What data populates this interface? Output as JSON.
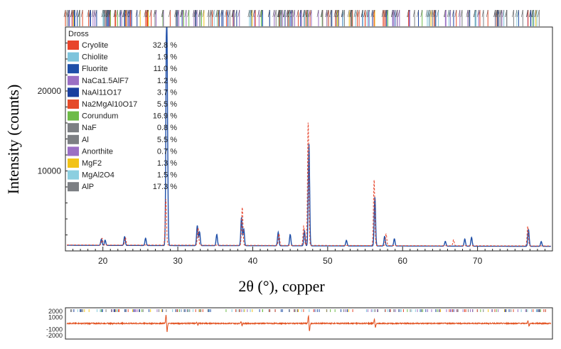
{
  "chart_data": {
    "type": "line",
    "title": "",
    "xlabel": "2θ (°), copper",
    "ylabel": "Intensity (counts)",
    "xlim": [
      15,
      80
    ],
    "ylim": [
      0,
      28000
    ],
    "x_ticks": [
      20,
      30,
      40,
      50,
      60,
      70
    ],
    "y_ticks": [
      10000,
      20000
    ],
    "x_tick_labels": [
      "20",
      "30",
      "40",
      "50",
      "60",
      "70"
    ],
    "y_tick_labels": [
      "10000",
      "20000"
    ],
    "grid": false,
    "legend": {
      "title": "Dross",
      "placement": "top-left",
      "entries": [
        {
          "name": "Cryolite",
          "value": "32.8 %",
          "color": "#e8452c"
        },
        {
          "name": "Chiolite",
          "value": "1.9 %",
          "color": "#7ec4dc"
        },
        {
          "name": "Fluorite",
          "value": "11.0 %",
          "color": "#1f4fa8"
        },
        {
          "name": "NaCa1.5AlF7",
          "value": "1.2 %",
          "color": "#9b6fc4"
        },
        {
          "name": "NaAl11O17",
          "value": "3.7 %",
          "color": "#1a3f9e"
        },
        {
          "name": "Na2MgAl10O17",
          "value": "5.5 %",
          "color": "#e54b2a"
        },
        {
          "name": "Corundum",
          "value": "16.9 %",
          "color": "#6dbb47"
        },
        {
          "name": "NaF",
          "value": "0.8 %",
          "color": "#7c7f83"
        },
        {
          "name": "Al",
          "value": "5.5 %",
          "color": "#7c7f83"
        },
        {
          "name": "Anorthite",
          "value": "0.7 %",
          "color": "#9b6fc4"
        },
        {
          "name": "MgF2",
          "value": "1.3 %",
          "color": "#f2c318"
        },
        {
          "name": "MgAl2O4",
          "value": "1.5 %",
          "color": "#8ccfe0"
        },
        {
          "name": "AlP",
          "value": "17.3 %",
          "color": "#7c7f83"
        }
      ]
    },
    "series": [
      {
        "color": "#1f4fa8",
        "baseline": 700,
        "peaks": [
          {
            "x": 19.8,
            "y": 1500
          },
          {
            "x": 20.3,
            "y": 1350
          },
          {
            "x": 22.9,
            "y": 1800
          },
          {
            "x": 25.7,
            "y": 1600
          },
          {
            "x": 28.5,
            "y": 27000
          },
          {
            "x": 28.6,
            "y": 8500
          },
          {
            "x": 32.6,
            "y": 3200
          },
          {
            "x": 32.9,
            "y": 2400
          },
          {
            "x": 35.2,
            "y": 2100
          },
          {
            "x": 38.5,
            "y": 4200
          },
          {
            "x": 38.8,
            "y": 2800
          },
          {
            "x": 43.4,
            "y": 2400
          },
          {
            "x": 45.0,
            "y": 2100
          },
          {
            "x": 46.9,
            "y": 2600
          },
          {
            "x": 47.5,
            "y": 13500
          },
          {
            "x": 52.5,
            "y": 1400
          },
          {
            "x": 56.3,
            "y": 6800
          },
          {
            "x": 57.6,
            "y": 1900
          },
          {
            "x": 58.9,
            "y": 1600
          },
          {
            "x": 65.7,
            "y": 1300
          },
          {
            "x": 68.3,
            "y": 1600
          },
          {
            "x": 69.2,
            "y": 1800
          },
          {
            "x": 76.8,
            "y": 2800
          },
          {
            "x": 78.5,
            "y": 1300
          }
        ]
      },
      {
        "color": "#e8452c",
        "baseline": 750,
        "peaks": [
          {
            "x": 19.9,
            "y": 1600
          },
          {
            "x": 23.0,
            "y": 1700
          },
          {
            "x": 28.4,
            "y": 6500
          },
          {
            "x": 32.7,
            "y": 2900
          },
          {
            "x": 38.6,
            "y": 5500
          },
          {
            "x": 43.5,
            "y": 2200
          },
          {
            "x": 46.8,
            "y": 3200
          },
          {
            "x": 47.4,
            "y": 16200
          },
          {
            "x": 56.2,
            "y": 9000
          },
          {
            "x": 57.8,
            "y": 2200
          },
          {
            "x": 66.8,
            "y": 1500
          },
          {
            "x": 76.7,
            "y": 3200
          }
        ]
      }
    ],
    "residual_plot": {
      "y_tick_labels": [
        "2000",
        "1000",
        "-1000",
        "-2000"
      ],
      "ylim": [
        -2600,
        2600
      ]
    }
  }
}
